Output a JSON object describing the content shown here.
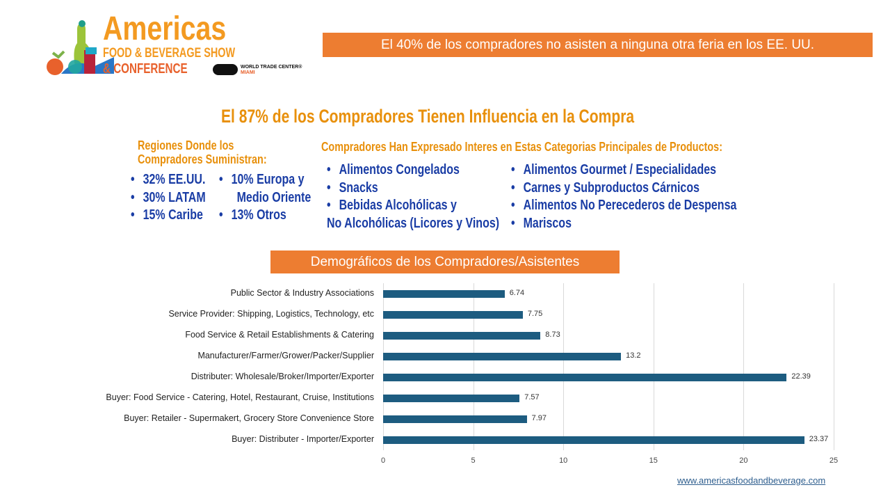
{
  "logo": {
    "line1": "Americas",
    "line2": "FOOD & BEVERAGE SHOW",
    "line3": "& CONFERENCE",
    "wtc": "WORLD TRADE CENTER®",
    "wtc_city": "MIAMI"
  },
  "top_banner": "El 40% de los compradores no asisten a ninguna otra feria en los EE. UU.",
  "headline": "El 87% de los Compradores Tienen Influencia en la Compra",
  "regions": {
    "heading_line1": "Regiones Donde los",
    "heading_line2": "Compradores Suministran:",
    "col1": [
      "32% EE.UU.",
      "30% LATAM",
      "15% Caribe"
    ],
    "col2_line1": "10% Europa y",
    "col2_line2": "Medio Oriente",
    "col2_last": "13% Otros"
  },
  "categories": {
    "heading": "Compradores Han Expresado Interes en Estas Categorias Principales de Productos:",
    "col1": [
      "Alimentos Congelados",
      "Snacks",
      "Bebidas Alcohólicas y"
    ],
    "col1_cont": "No Alcohólicas (Licores y Vinos)",
    "col2": [
      "Alimentos Gourmet / Especialidades",
      "Carnes y Subproductos Cárnicos",
      "Alimentos No Perecederos de Despensa",
      "Mariscos"
    ]
  },
  "demo_banner": "Demográficos de los Compradores/Asistentes",
  "chart_data": {
    "type": "bar",
    "orientation": "horizontal",
    "title": "Demográficos de los Compradores/Asistentes",
    "categories": [
      "Public Sector & Industry Associations",
      "Service Provider: Shipping, Logistics, Technology, etc",
      "Food Service & Retail Establishments & Catering",
      "Manufacturer/Farmer/Grower/Packer/Supplier",
      "Distributer: Wholesale/Broker/Importer/Exporter",
      "Buyer: Food Service - Catering, Hotel, Restaurant, Cruise, Institutions",
      "Buyer: Retailer - Supermakert, Grocery Store Convenience Store",
      "Buyer: Distributer - Importer/Exporter"
    ],
    "values": [
      6.74,
      7.75,
      8.73,
      13.2,
      22.39,
      7.57,
      7.97,
      23.37
    ],
    "value_labels": [
      "6.74",
      "7.75",
      "8.73",
      "13.2",
      "22.39",
      "7.57",
      "7.97",
      "23.37"
    ],
    "xlim": [
      0,
      25
    ],
    "xticks": [
      "0",
      "5",
      "10",
      "15",
      "20",
      "25"
    ],
    "grid": true,
    "bar_color": "#1D5C80"
  },
  "footer_url": "www.americasfoodandbeverage.com"
}
